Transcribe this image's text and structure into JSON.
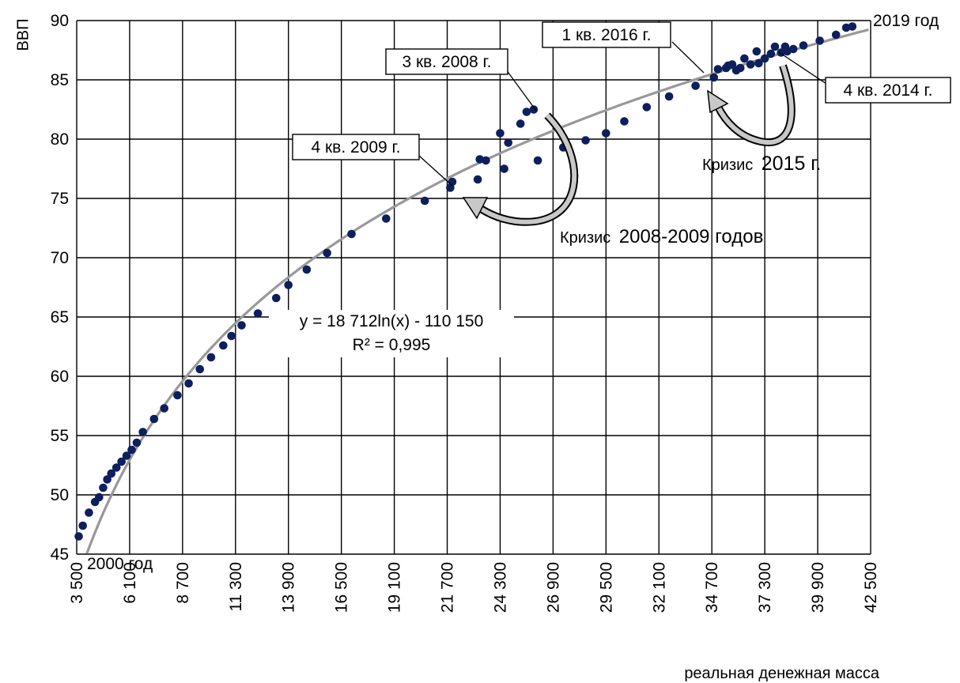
{
  "chart_data": {
    "type": "scatter",
    "ylabel": "ВВП",
    "xlabel": "реальная денежная масса",
    "xlim": [
      3500,
      42500
    ],
    "ylim": [
      45,
      90
    ],
    "x_ticks": [
      3500,
      6100,
      8700,
      11300,
      13900,
      16500,
      19100,
      21700,
      24300,
      26900,
      29500,
      32100,
      34700,
      37300,
      39900,
      42500
    ],
    "x_tick_labels": [
      "3 500",
      "6 100",
      "8 700",
      "11 300",
      "13 900",
      "16 500",
      "19 100",
      "21 700",
      "24 300",
      "26 900",
      "29 500",
      "32 100",
      "34 700",
      "37 300",
      "39 900",
      "42 500"
    ],
    "y_ticks": [
      45,
      50,
      55,
      60,
      65,
      70,
      75,
      80,
      85,
      90
    ],
    "grid": true,
    "point_color": "#0d1f5c",
    "trend_color": "#999999",
    "series": [
      {
        "values": [
          [
            3600,
            46.5
          ],
          [
            3800,
            47.4
          ],
          [
            4100,
            48.5
          ],
          [
            4400,
            49.4
          ],
          [
            4600,
            49.8
          ],
          [
            4800,
            50.6
          ],
          [
            5000,
            51.3
          ],
          [
            5200,
            51.8
          ],
          [
            5450,
            52.3
          ],
          [
            5700,
            52.8
          ],
          [
            5950,
            53.3
          ],
          [
            6200,
            53.8
          ],
          [
            6450,
            54.4
          ],
          [
            6750,
            55.3
          ],
          [
            7300,
            56.4
          ],
          [
            7800,
            57.3
          ],
          [
            8450,
            58.4
          ],
          [
            9000,
            59.4
          ],
          [
            9550,
            60.6
          ],
          [
            10100,
            61.6
          ],
          [
            10700,
            62.6
          ],
          [
            11100,
            63.4
          ],
          [
            11600,
            64.3
          ],
          [
            12400,
            65.3
          ],
          [
            13300,
            66.6
          ],
          [
            13900,
            67.7
          ],
          [
            14800,
            69.0
          ],
          [
            15800,
            70.4
          ],
          [
            17000,
            72.0
          ],
          [
            18700,
            73.3
          ],
          [
            20600,
            74.8
          ],
          [
            21850,
            75.9
          ],
          [
            21950,
            76.4
          ],
          [
            23200,
            76.6
          ],
          [
            23300,
            78.3
          ],
          [
            23600,
            78.2
          ],
          [
            24300,
            80.5
          ],
          [
            24500,
            77.5
          ],
          [
            24700,
            79.7
          ],
          [
            25300,
            81.3
          ],
          [
            25600,
            82.3
          ],
          [
            25950,
            82.5
          ],
          [
            26150,
            78.2
          ],
          [
            27400,
            79.3
          ],
          [
            28500,
            79.9
          ],
          [
            29500,
            80.5
          ],
          [
            30400,
            81.5
          ],
          [
            31500,
            82.7
          ],
          [
            32600,
            83.6
          ],
          [
            33900,
            84.5
          ],
          [
            34800,
            85.2
          ],
          [
            35000,
            85.9
          ],
          [
            35400,
            86.0
          ],
          [
            35500,
            86.2
          ],
          [
            35700,
            86.3
          ],
          [
            35900,
            85.8
          ],
          [
            36100,
            86.0
          ],
          [
            36300,
            86.8
          ],
          [
            36600,
            86.3
          ],
          [
            36900,
            87.4
          ],
          [
            37000,
            86.4
          ],
          [
            37300,
            86.8
          ],
          [
            37600,
            87.2
          ],
          [
            37800,
            87.8
          ],
          [
            38100,
            87.3
          ],
          [
            38300,
            87.8
          ],
          [
            38400,
            87.4
          ],
          [
            38700,
            87.6
          ],
          [
            39200,
            87.9
          ],
          [
            40000,
            88.3
          ],
          [
            40800,
            88.8
          ],
          [
            41300,
            89.4
          ],
          [
            41600,
            89.5
          ]
        ]
      }
    ],
    "trendline": {
      "type": "log",
      "a": 18712,
      "b": -110150,
      "equation": "y = 18 712ln(x) - 110 150",
      "r2_label": "R² = 0,995"
    },
    "annotations": {
      "start_label": "2000 год",
      "end_label": "2019 год",
      "callouts": [
        {
          "text": "3 кв. 2008 г.",
          "x": 25950,
          "y": 82.5
        },
        {
          "text": "4 кв. 2009 г.",
          "x": 21850,
          "y": 75.9
        },
        {
          "text": "1 кв. 2016 г.",
          "x": 35000,
          "y": 85.9
        },
        {
          "text": "4 кв. 2014 г.",
          "x": 38400,
          "y": 87.4
        }
      ],
      "crisis_labels": [
        {
          "prefix": "Кризис",
          "suffix": "2008-2009 годов"
        },
        {
          "prefix": "Кризис",
          "suffix": "2015 г."
        }
      ]
    }
  }
}
